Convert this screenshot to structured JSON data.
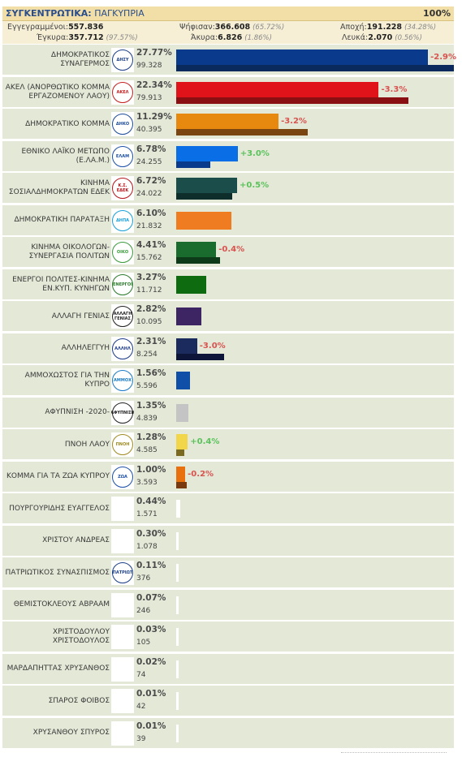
{
  "header": {
    "title_bold": "ΣΥΓΚΕΝΤΡΩΤΙΚΑ:",
    "title_rest": "ΠΑΓΚΥΠΡΙΑ",
    "percent_counted": "100%"
  },
  "summary": {
    "registered_label": "Εγγεγραμμένοι:",
    "registered_value": "557.836",
    "voted_label": "Ψήφισαν:",
    "voted_value": "366.608",
    "voted_pct": "(65.72%)",
    "abstention_label": "Αποχή:",
    "abstention_value": "191.228",
    "abstention_pct": "(34.28%)",
    "valid_label": "Έγκυρα:",
    "valid_value": "357.712",
    "valid_pct": "(97.57%)",
    "invalid_label": "Άκυρα:",
    "invalid_value": "6.826",
    "invalid_pct": "(1.86%)",
    "blank_label": "Λευκά:",
    "blank_value": "2.070",
    "blank_pct": "(0.56%)"
  },
  "colors": {
    "positive_change": "#5cc25c",
    "negative_change": "#d9534f",
    "row_background": "#e3e8d7"
  },
  "chart_data": {
    "type": "bar",
    "orientation": "horizontal",
    "x_max_percent": 30,
    "series": [
      {
        "name": "current",
        "unit": "%"
      },
      {
        "name": "previous",
        "unit": "%"
      }
    ],
    "parties": [
      {
        "name": "ΔΗΜΟΚΡΑΤΙΚΟΣ ΣΥΝΑΓΕΡΜΟΣ",
        "percent_label": "27.77%",
        "percent": 27.77,
        "votes": "99.328",
        "change_label": "-2.9%",
        "change": -2.9,
        "color": "#0a3a8c",
        "prev_color": "#0a2a5e",
        "logo": "ΔΗΣΥ",
        "logo_color": "#1b3f87"
      },
      {
        "name": "ΑΚΕΛ (ΑΝΟΡΘΩΤΙΚΟ ΚΟΜΜΑ ΕΡΓΑΖΟΜΕΝΟΥ ΛΑΟΥ)",
        "percent_label": "22.34%",
        "percent": 22.34,
        "votes": "79.913",
        "change_label": "-3.3%",
        "change": -3.3,
        "color": "#e0131b",
        "prev_color": "#8a0f12",
        "logo": "ΑΚΕΛ",
        "logo_color": "#c41e1e"
      },
      {
        "name": "ΔΗΜΟΚΡΑΤΙΚΟ ΚΟΜΜΑ",
        "percent_label": "11.29%",
        "percent": 11.29,
        "votes": "40.395",
        "change_label": "-3.2%",
        "change": -3.2,
        "color": "#e8890f",
        "prev_color": "#7a4510",
        "logo": "ΔΗΚΟ",
        "logo_color": "#1b4b9a"
      },
      {
        "name": "ΕΘΝΙΚΟ ΛΑΪΚΟ ΜΕΤΩΠΟ (Ε.ΛΑ.Μ.)",
        "percent_label": "6.78%",
        "percent": 6.78,
        "votes": "24.255",
        "change_label": "+3.0%",
        "change": 3.0,
        "color": "#0a6ee6",
        "prev_color": "#0a3a8c",
        "logo": "ΕΛΑΜ",
        "logo_color": "#1b4fa8"
      },
      {
        "name": "ΚΙΝΗΜΑ ΣΟΣΙΑΛΔΗΜΟΚΡΑΤΩΝ ΕΔΕΚ",
        "percent_label": "6.72%",
        "percent": 6.72,
        "votes": "24.022",
        "change_label": "+0.5%",
        "change": 0.5,
        "color": "#1b4d4a",
        "prev_color": "#0e2e2c",
        "logo": "Κ.Σ. ΕΔΕΚ",
        "logo_color": "#b5161c"
      },
      {
        "name": "ΔΗΜΟΚΡΑΤΙΚΗ ΠΑΡΑΤΑΞΗ",
        "percent_label": "6.10%",
        "percent": 6.1,
        "votes": "21.832",
        "change_label": "",
        "change": null,
        "color": "#f07c22",
        "prev_color": "",
        "logo": "ΔΗΠΑ",
        "logo_color": "#18a0d8"
      },
      {
        "name": "ΚΙΝΗΜΑ ΟΙΚΟΛΟΓΩΝ-ΣΥΝΕΡΓΑΣΙΑ ΠΟΛΙΤΩΝ",
        "percent_label": "4.41%",
        "percent": 4.41,
        "votes": "15.762",
        "change_label": "-0.4%",
        "change": -0.4,
        "color": "#1a6b2e",
        "prev_color": "#0d3a18",
        "logo": "ΟΙΚΟ",
        "logo_color": "#3a9a3a"
      },
      {
        "name": "ΕΝΕΡΓΟΙ ΠΟΛΙΤΕΣ-ΚΙΝΗΜΑ ΕΝ.ΚΥΠ. ΚΥΝΗΓΩΝ",
        "percent_label": "3.27%",
        "percent": 3.27,
        "votes": "11.712",
        "change_label": "",
        "change": null,
        "color": "#0f6b10",
        "prev_color": "",
        "logo": "ΕΝΕΡΓΟΙ",
        "logo_color": "#2a7a2a"
      },
      {
        "name": "ΑΛΛΑΓΗ ΓΕΝΙΑΣ",
        "percent_label": "2.82%",
        "percent": 2.82,
        "votes": "10.095",
        "change_label": "",
        "change": null,
        "color": "#3d2463",
        "prev_color": "",
        "logo": "ΑΛΛΑΓΗ ΓΕΝΙΑΣ",
        "logo_color": "#1e1e1e"
      },
      {
        "name": "ΑΛΛΗΛΕΓΓΥΗ",
        "percent_label": "2.31%",
        "percent": 2.31,
        "votes": "8.254",
        "change_label": "-3.0%",
        "change": -3.0,
        "color": "#1c2b5e",
        "prev_color": "#0d1638",
        "logo": "ΑΛΛΗΛ",
        "logo_color": "#1c3a8a"
      },
      {
        "name": "ΑΜΜΟΧΩΣΤΟΣ ΓΙΑ ΤΗΝ ΚΥΠΡΟ",
        "percent_label": "1.56%",
        "percent": 1.56,
        "votes": "5.596",
        "change_label": "",
        "change": null,
        "color": "#0f4fa8",
        "prev_color": "",
        "logo": "ΑΜΜΟΧ",
        "logo_color": "#1a7ac4"
      },
      {
        "name": "ΑΦΥΠΝΙΣΗ -2020-",
        "percent_label": "1.35%",
        "percent": 1.35,
        "votes": "4.839",
        "change_label": "",
        "change": null,
        "color": "#c4c4c4",
        "prev_color": "",
        "logo": "ΑΦΥΠΝΙΣΗ",
        "logo_color": "#222222"
      },
      {
        "name": "ΠΝΟΗ ΛΑΟΥ",
        "percent_label": "1.28%",
        "percent": 1.28,
        "votes": "4.585",
        "change_label": "+0.4%",
        "change": 0.4,
        "color": "#f2d64a",
        "prev_color": "#7a6a20",
        "logo": "ΠΝΟΗ",
        "logo_color": "#a08a20"
      },
      {
        "name": "ΚΟΜΜΑ ΓΙΑ ΤΑ ΖΩΑ ΚΥΠΡΟΥ",
        "percent_label": "1.00%",
        "percent": 1.0,
        "votes": "3.593",
        "change_label": "-0.2%",
        "change": -0.2,
        "color": "#e8700f",
        "prev_color": "#7a3a10",
        "logo": "ΖΩΑ",
        "logo_color": "#1b4fa8"
      },
      {
        "name": "ΠΟΥΡΓΟΥΡΙΔΗΣ ΕΥΑΓΓΕΛΟΣ",
        "percent_label": "0.44%",
        "percent": 0.44,
        "votes": "1.571",
        "change_label": "",
        "change": null,
        "color": "#ffffff",
        "prev_color": "",
        "logo": "",
        "logo_color": "#ffffff"
      },
      {
        "name": "ΧΡΙΣΤΟΥ ΑΝΔΡΕΑΣ",
        "percent_label": "0.30%",
        "percent": 0.3,
        "votes": "1.078",
        "change_label": "",
        "change": null,
        "color": "#ffffff",
        "prev_color": "",
        "logo": "",
        "logo_color": "#999999"
      },
      {
        "name": "ΠΑΤΡΙΩΤΙΚΟΣ ΣΥΝΑΣΠΙΣΜΟΣ",
        "percent_label": "0.11%",
        "percent": 0.11,
        "votes": "376",
        "change_label": "",
        "change": null,
        "color": "#ffffff",
        "prev_color": "",
        "logo": "ΠΑΤΡΙΩΤ",
        "logo_color": "#1b3f87"
      },
      {
        "name": "ΘΕΜΙΣΤΟΚΛΕΟΥΣ ΑΒΡΑΑΜ",
        "percent_label": "0.07%",
        "percent": 0.07,
        "votes": "246",
        "change_label": "",
        "change": null,
        "color": "#ffffff",
        "prev_color": "",
        "logo": "",
        "logo_color": "#ffffff"
      },
      {
        "name": "ΧΡΙΣΤΟΔΟΥΛΟΥ ΧΡΙΣΤΟΔΟΥΛΟΣ",
        "percent_label": "0.03%",
        "percent": 0.03,
        "votes": "105",
        "change_label": "",
        "change": null,
        "color": "#ffffff",
        "prev_color": "",
        "logo": "",
        "logo_color": "#ffffff"
      },
      {
        "name": "ΜΑΡΔΑΠΗΤΤΑΣ ΧΡΥΣΑΝΘΟΣ",
        "percent_label": "0.02%",
        "percent": 0.02,
        "votes": "74",
        "change_label": "",
        "change": null,
        "color": "#ffffff",
        "prev_color": "",
        "logo": "",
        "logo_color": "#ffffff"
      },
      {
        "name": "ΣΠΑΡΟΣ ΦΟΙΒΟΣ",
        "percent_label": "0.01%",
        "percent": 0.01,
        "votes": "42",
        "change_label": "",
        "change": null,
        "color": "#ffffff",
        "prev_color": "",
        "logo": "",
        "logo_color": "#444444"
      },
      {
        "name": "ΧΡΥΣΑΝΘΟΥ ΣΠΥΡΟΣ",
        "percent_label": "0.01%",
        "percent": 0.01,
        "votes": "39",
        "change_label": "",
        "change": null,
        "color": "#ffffff",
        "prev_color": "",
        "logo": "",
        "logo_color": "#ffffff"
      }
    ]
  }
}
